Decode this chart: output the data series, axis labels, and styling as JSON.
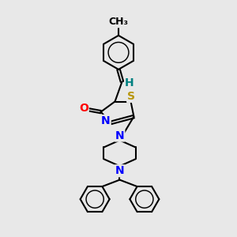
{
  "background_color": "#e8e8e8",
  "atom_colors": {
    "C": "#000000",
    "H": "#008080",
    "N": "#0000ff",
    "O": "#ff0000",
    "S": "#b8960c"
  },
  "bond_color": "#000000",
  "bond_width": 1.5,
  "font_size_atom": 10,
  "figsize": [
    3.0,
    3.0
  ],
  "dpi": 100
}
